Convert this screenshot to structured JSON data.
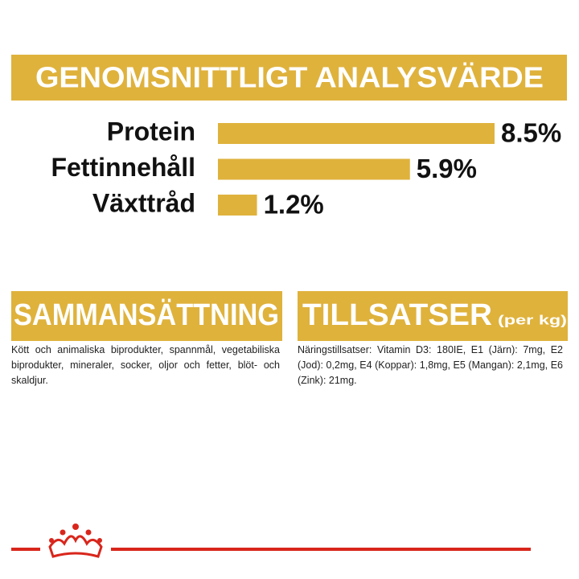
{
  "chart_data": {
    "type": "bar",
    "title": "GENOMSNITTLIGT ANALYSVÄRDE",
    "categories": [
      "Protein",
      "Fettinnehåll",
      "Växttråd"
    ],
    "values": [
      8.5,
      5.9,
      1.2
    ],
    "value_labels": [
      "8.5%",
      "5.9%",
      "1.2%"
    ],
    "color": "#dfb23c"
  },
  "composition": {
    "title": "SAMMANSÄTTNING",
    "text": "Kött och animaliska biprodukter, spannmål, vegetabiliska biprodukter, mineraler, socker, oljor och fetter, blöt- och skaldjur."
  },
  "additives": {
    "title": "TILLSATSER",
    "unit": "(per kg)",
    "text": "Näringstillsatser: Vitamin D3: 180IE, E1 (Järn): 7mg, E2 (Jod): 0,2mg, E4 (Koppar): 1,8mg, E5 (Mangan): 2,1mg, E6 (Zink): 21mg."
  }
}
